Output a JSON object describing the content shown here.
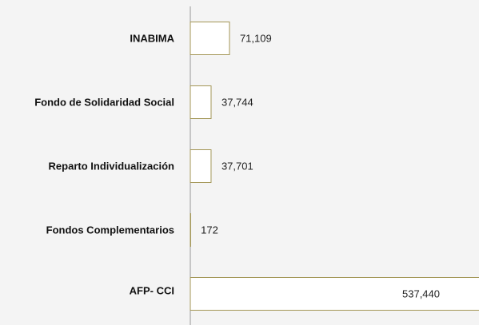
{
  "chart_data": {
    "type": "bar",
    "orientation": "horizontal",
    "categories": [
      "INABIMA",
      "Fondo de Solidaridad Social",
      "Reparto Individualización",
      "Fondos Complementarios",
      "AFP- CCI"
    ],
    "values": [
      71109,
      37744,
      37701,
      172,
      537440
    ],
    "value_labels": [
      "71,109",
      "37,744",
      "37,701",
      "172",
      "537,440"
    ],
    "color": "#a39656"
  }
}
